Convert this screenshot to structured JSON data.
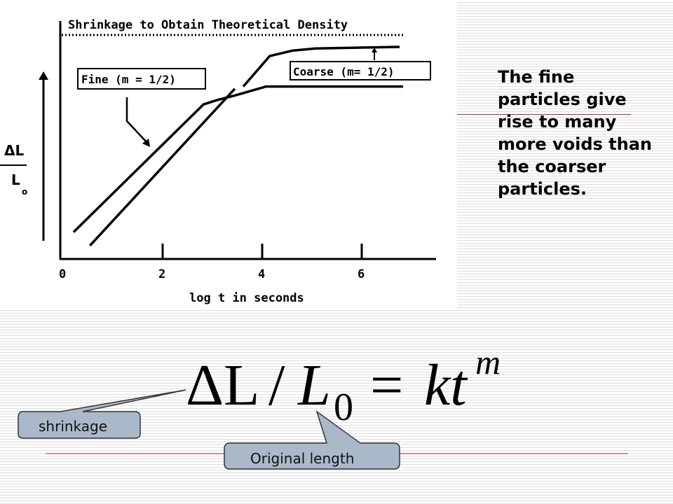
{
  "slide": {
    "side_text": "The fine particles give rise to many more voids than the coarser particles.",
    "equation": {
      "delta_l": "ΔL",
      "slash": "/",
      "l": "L",
      "sub0": "0",
      "equals": "=",
      "kt": "kt",
      "exp": "m"
    },
    "callouts": {
      "shrinkage": "shrinkage",
      "original_length": "Original length"
    },
    "colors": {
      "rule": "#b03030",
      "callout_fill": "#a9b9c9",
      "stripe": "#dcdcdc"
    }
  },
  "chart_data": {
    "type": "line",
    "title": "Shrinkage to Obtain Theoretical Density",
    "xlabel": "log t in seconds",
    "ylabel_num": "ΔL",
    "ylabel_den": "L",
    "ylabel_sub": "o",
    "xticks": [
      "0",
      "2",
      "4",
      "6"
    ],
    "xlim": [
      0,
      7.5
    ],
    "ylim": [
      0,
      1
    ],
    "reference_line": {
      "y": 1,
      "style": "dotted"
    },
    "series": [
      {
        "name": "Fine (m = 1/2)",
        "x": [
          0.21,
          2.82,
          3.1,
          3.45,
          4.08,
          6.83
        ],
        "y": [
          0.12,
          0.69,
          0.71,
          0.73,
          0.77,
          0.77
        ]
      },
      {
        "name": "Coarse (m= 1/2)",
        "x": [
          0.54,
          3.45
        ],
        "y": [
          0.06,
          0.76
        ],
        "x2": [
          3.62,
          4.15,
          4.6,
          5.07,
          6.76
        ],
        "y2": [
          0.77,
          0.906,
          0.93,
          0.94,
          0.947
        ]
      }
    ]
  }
}
